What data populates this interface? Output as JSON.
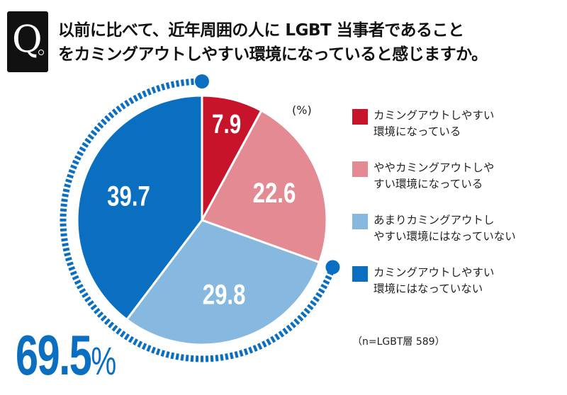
{
  "question_mark": "Q",
  "title_line1": "以前に比べて、近年周囲の人に LGBT 当事者であること",
  "title_line2": "をカミングアウトしやすい環境になっていると感じますか。",
  "highlight": {
    "value": "69.5",
    "unit": "%"
  },
  "note": "（n=LGBT層 589）",
  "chart_data": {
    "type": "pie",
    "unit_label": "(%)",
    "title": "以前に比べて、近年周囲の人に LGBT 当事者であることをカミングアウトしやすい環境になっていると感じますか。",
    "start": "top",
    "direction": "clockwise",
    "slices": [
      {
        "label": "カミングアウトしやすい\n環境になっている",
        "value": 7.9,
        "display": "7.9",
        "color": "#c8142a"
      },
      {
        "label": "ややカミングアウトしや\nすい環境になっている",
        "value": 22.6,
        "display": "22.6",
        "color": "#e38a93"
      },
      {
        "label": "あまりカミングアウトし\nやすい環境にはなっていない",
        "value": 29.8,
        "display": "29.8",
        "color": "#86b8e0"
      },
      {
        "label": "カミングアウトしやすい\n環境にはなっていない",
        "value": 39.7,
        "display": "39.7",
        "color": "#0a6fc0"
      }
    ],
    "highlight_arc": {
      "covers_slices": [
        2,
        3
      ],
      "total": 69.5,
      "color": "#0a6fc0"
    }
  }
}
